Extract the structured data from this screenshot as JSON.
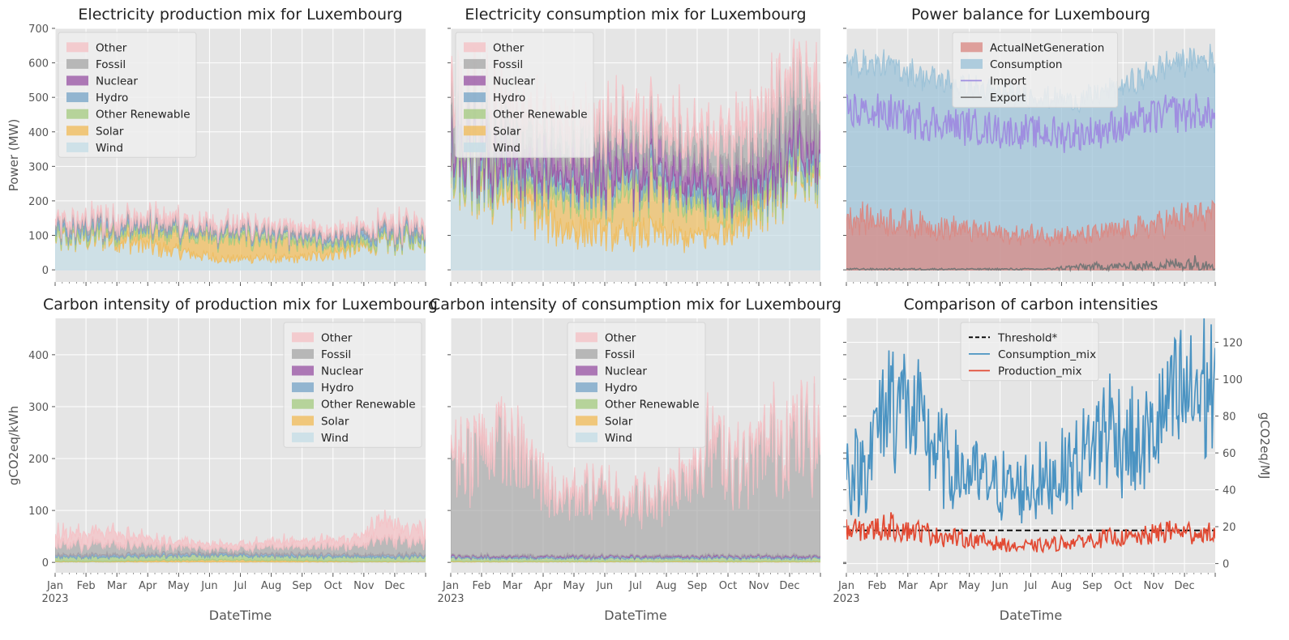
{
  "figure": {
    "xlabel_common": "DateTime"
  },
  "colors": {
    "Other": "#f4c2c6",
    "Fossil": "#a9a9a9",
    "Nuclear": "#9b59a6",
    "Hydro": "#7aa6c8",
    "Other Renewable": "#a8cc84",
    "Solar": "#f0bd5e",
    "Wind": "#c6dde6",
    "ActualNetGeneration": "#d98b86",
    "Consumption": "#9ec3d8",
    "Import": "#9f8ee0",
    "Export": "#777777",
    "Threshold": "#000000",
    "Consumption_mix": "#4a93c2",
    "Production_mix": "#e24a33"
  },
  "months": [
    "Jan",
    "Feb",
    "Mar",
    "Apr",
    "May",
    "Jun",
    "Jul",
    "Aug",
    "Sep",
    "Oct",
    "Nov",
    "Dec"
  ],
  "year_label": "2023",
  "chart_data": [
    {
      "id": "prod_mix",
      "type": "area",
      "title": "Electricity production mix for Luxembourg",
      "ylabel": "Power (MW)",
      "xlabel": "",
      "ylim": [
        -35,
        700
      ],
      "yticks": [
        0,
        100,
        200,
        300,
        400,
        500,
        600,
        700
      ],
      "legend": [
        "Other",
        "Fossil",
        "Nuclear",
        "Hydro",
        "Other Renewable",
        "Solar",
        "Wind"
      ],
      "legend_position": "top-left",
      "x": [
        "2023-01",
        "2023-02",
        "2023-03",
        "2023-04",
        "2023-05",
        "2023-06",
        "2023-07",
        "2023-08",
        "2023-09",
        "2023-10",
        "2023-11",
        "2023-12"
      ],
      "series": [
        {
          "name": "Wind",
          "values": [
            85,
            95,
            80,
            60,
            45,
            30,
            35,
            30,
            40,
            55,
            75,
            85
          ]
        },
        {
          "name": "Solar",
          "values": [
            5,
            10,
            25,
            45,
            55,
            60,
            55,
            45,
            30,
            15,
            5,
            3
          ]
        },
        {
          "name": "Other Renewable",
          "values": [
            15,
            15,
            15,
            15,
            15,
            15,
            15,
            15,
            15,
            15,
            15,
            15
          ]
        },
        {
          "name": "Hydro",
          "values": [
            15,
            15,
            12,
            10,
            8,
            8,
            8,
            8,
            10,
            12,
            15,
            15
          ]
        },
        {
          "name": "Nuclear",
          "values": [
            0,
            0,
            0,
            0,
            0,
            0,
            0,
            0,
            0,
            0,
            0,
            0
          ]
        },
        {
          "name": "Fossil",
          "values": [
            10,
            10,
            10,
            10,
            10,
            10,
            10,
            10,
            10,
            10,
            10,
            10
          ]
        },
        {
          "name": "Other",
          "values": [
            10,
            10,
            10,
            10,
            10,
            10,
            10,
            10,
            10,
            10,
            10,
            10
          ]
        }
      ]
    },
    {
      "id": "cons_mix",
      "type": "area",
      "title": "Electricity consumption mix for Luxembourg",
      "ylabel": "",
      "xlabel": "",
      "ylim": [
        -35,
        700
      ],
      "legend": [
        "Other",
        "Fossil",
        "Nuclear",
        "Hydro",
        "Other Renewable",
        "Solar",
        "Wind"
      ],
      "legend_position": "top-left",
      "x": [
        "2023-01",
        "2023-02",
        "2023-03",
        "2023-04",
        "2023-05",
        "2023-06",
        "2023-07",
        "2023-08",
        "2023-09",
        "2023-10",
        "2023-11",
        "2023-12"
      ],
      "series": [
        {
          "name": "Wind",
          "values": [
            250,
            230,
            180,
            120,
            110,
            100,
            110,
            90,
            100,
            150,
            230,
            260
          ]
        },
        {
          "name": "Solar",
          "values": [
            10,
            20,
            40,
            90,
            110,
            120,
            110,
            100,
            80,
            40,
            15,
            10
          ]
        },
        {
          "name": "Other Renewable",
          "values": [
            30,
            30,
            30,
            30,
            30,
            30,
            30,
            30,
            30,
            30,
            30,
            30
          ]
        },
        {
          "name": "Hydro",
          "values": [
            30,
            30,
            30,
            30,
            30,
            30,
            30,
            30,
            30,
            30,
            30,
            30
          ]
        },
        {
          "name": "Nuclear",
          "values": [
            60,
            60,
            60,
            60,
            60,
            60,
            60,
            60,
            60,
            60,
            60,
            60
          ]
        },
        {
          "name": "Fossil",
          "values": [
            100,
            90,
            80,
            70,
            60,
            60,
            60,
            60,
            80,
            90,
            120,
            130
          ]
        },
        {
          "name": "Other",
          "values": [
            30,
            30,
            30,
            30,
            30,
            30,
            30,
            30,
            30,
            30,
            30,
            30
          ]
        }
      ]
    },
    {
      "id": "balance",
      "type": "area",
      "title": "Power balance for Luxembourg",
      "ylabel": "",
      "xlabel": "",
      "ylim": [
        -35,
        700
      ],
      "legend": [
        "ActualNetGeneration",
        "Consumption",
        "Import",
        "Export"
      ],
      "legend_position": "top-center",
      "x": [
        "2023-01",
        "2023-02",
        "2023-03",
        "2023-04",
        "2023-05",
        "2023-06",
        "2023-07",
        "2023-08",
        "2023-09",
        "2023-10",
        "2023-11",
        "2023-12"
      ],
      "series": [
        {
          "name": "ActualNetGeneration",
          "values": [
            150,
            140,
            130,
            120,
            110,
            100,
            105,
            95,
            110,
            120,
            140,
            160
          ]
        },
        {
          "name": "Consumption",
          "values": [
            600,
            590,
            560,
            540,
            520,
            510,
            500,
            490,
            520,
            550,
            600,
            610
          ]
        },
        {
          "name": "Import",
          "values": [
            460,
            450,
            430,
            420,
            410,
            400,
            395,
            390,
            410,
            430,
            460,
            450
          ]
        },
        {
          "name": "Export",
          "values": [
            2,
            2,
            2,
            2,
            2,
            2,
            2,
            8,
            10,
            10,
            15,
            20
          ]
        }
      ]
    },
    {
      "id": "ci_prod",
      "type": "area",
      "title": "Carbon intensity of production mix for Luxembourg",
      "ylabel": "gCO2eq/kWh",
      "xlabel": "DateTime",
      "ylim": [
        -20,
        470
      ],
      "yticks": [
        0,
        100,
        200,
        300,
        400
      ],
      "legend": [
        "Other",
        "Fossil",
        "Nuclear",
        "Hydro",
        "Other Renewable",
        "Solar",
        "Wind"
      ],
      "legend_position": "top-right",
      "x": [
        "2023-01",
        "2023-02",
        "2023-03",
        "2023-04",
        "2023-05",
        "2023-06",
        "2023-07",
        "2023-08",
        "2023-09",
        "2023-10",
        "2023-11",
        "2023-12"
      ],
      "series": [
        {
          "name": "Wind",
          "values": [
            1,
            1,
            1,
            1,
            1,
            1,
            1,
            1,
            1,
            1,
            1,
            1
          ]
        },
        {
          "name": "Solar",
          "values": [
            1,
            1,
            2,
            3,
            3,
            4,
            3,
            3,
            2,
            1,
            1,
            1
          ]
        },
        {
          "name": "Other Renewable",
          "values": [
            8,
            8,
            8,
            8,
            8,
            8,
            8,
            8,
            8,
            8,
            8,
            8
          ]
        },
        {
          "name": "Hydro",
          "values": [
            4,
            4,
            4,
            4,
            4,
            4,
            4,
            4,
            4,
            4,
            4,
            4
          ]
        },
        {
          "name": "Nuclear",
          "values": [
            0,
            0,
            0,
            0,
            0,
            0,
            0,
            0,
            0,
            0,
            0,
            0
          ]
        },
        {
          "name": "Fossil",
          "values": [
            20,
            22,
            18,
            15,
            12,
            8,
            12,
            14,
            15,
            15,
            30,
            25
          ]
        },
        {
          "name": "Other",
          "values": [
            20,
            25,
            18,
            12,
            10,
            8,
            10,
            12,
            14,
            12,
            35,
            28
          ]
        }
      ]
    },
    {
      "id": "ci_cons",
      "type": "area",
      "title": "Carbon intensity of consumption mix for Luxembourg",
      "ylabel": "",
      "xlabel": "DateTime",
      "ylim": [
        -20,
        470
      ],
      "legend": [
        "Other",
        "Fossil",
        "Nuclear",
        "Hydro",
        "Other Renewable",
        "Solar",
        "Wind"
      ],
      "legend_position": "top-center",
      "x": [
        "2023-01",
        "2023-02",
        "2023-03",
        "2023-04",
        "2023-05",
        "2023-06",
        "2023-07",
        "2023-08",
        "2023-09",
        "2023-10",
        "2023-11",
        "2023-12"
      ],
      "series": [
        {
          "name": "Wind",
          "values": [
            1,
            1,
            1,
            1,
            1,
            1,
            1,
            1,
            1,
            1,
            1,
            1
          ]
        },
        {
          "name": "Solar",
          "values": [
            1,
            1,
            1,
            1,
            1,
            1,
            1,
            1,
            1,
            1,
            1,
            1
          ]
        },
        {
          "name": "Other Renewable",
          "values": [
            6,
            6,
            6,
            6,
            6,
            6,
            6,
            6,
            6,
            6,
            6,
            6
          ]
        },
        {
          "name": "Hydro",
          "values": [
            3,
            3,
            3,
            3,
            3,
            3,
            3,
            3,
            3,
            3,
            3,
            3
          ]
        },
        {
          "name": "Nuclear",
          "values": [
            2,
            2,
            2,
            2,
            2,
            2,
            2,
            2,
            2,
            2,
            2,
            2
          ]
        },
        {
          "name": "Fossil",
          "values": [
            190,
            220,
            170,
            110,
            120,
            110,
            100,
            150,
            210,
            160,
            220,
            220
          ]
        },
        {
          "name": "Other",
          "values": [
            15,
            20,
            15,
            10,
            10,
            8,
            8,
            12,
            15,
            12,
            20,
            20
          ]
        }
      ]
    },
    {
      "id": "ci_compare",
      "type": "line",
      "title": "Comparison of carbon intensities",
      "ylabel": "",
      "y2label": "gCO2eq/MJ",
      "xlabel": "DateTime",
      "ylim": [
        -5,
        133
      ],
      "yticks": [
        0,
        20,
        40,
        60,
        80,
        100,
        120
      ],
      "legend": [
        "Threshold*",
        "Consumption_mix",
        "Production_mix"
      ],
      "legend_position": "top-center",
      "x": [
        "2023-01",
        "2023-02",
        "2023-03",
        "2023-04",
        "2023-05",
        "2023-06",
        "2023-07",
        "2023-08",
        "2023-09",
        "2023-10",
        "2023-11",
        "2023-12"
      ],
      "series": [
        {
          "name": "Threshold*",
          "values": [
            18,
            18,
            18,
            18,
            18,
            18,
            18,
            18,
            18,
            18,
            18,
            18
          ]
        },
        {
          "name": "Consumption_mix",
          "values": [
            50,
            95,
            70,
            50,
            45,
            40,
            45,
            55,
            75,
            60,
            85,
            95
          ]
        },
        {
          "name": "Production_mix",
          "values": [
            18,
            20,
            17,
            14,
            12,
            9,
            10,
            12,
            14,
            14,
            18,
            16
          ]
        }
      ]
    }
  ]
}
